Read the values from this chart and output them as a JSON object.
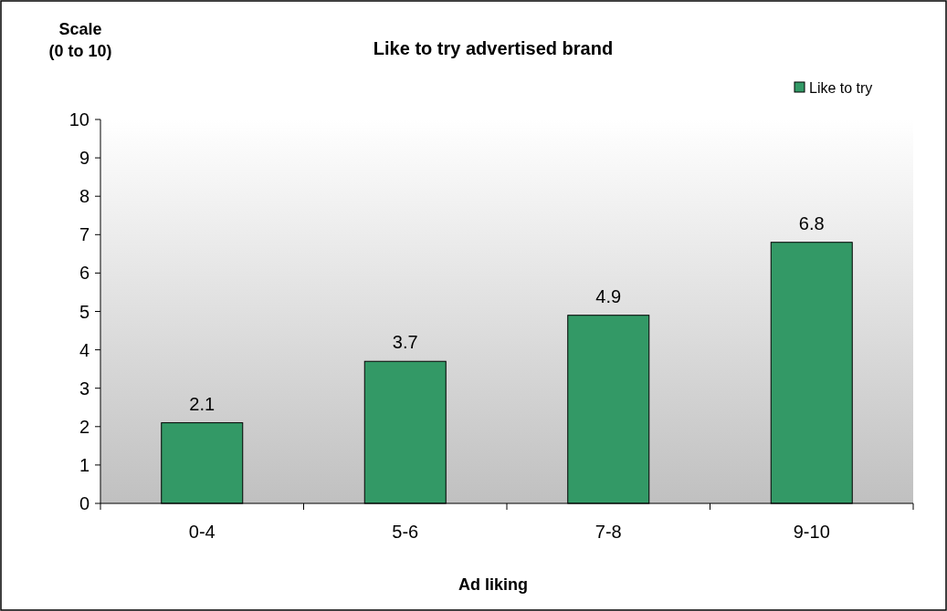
{
  "chart_data": {
    "type": "bar",
    "title": "Like to try advertised brand",
    "xlabel": "Ad liking",
    "ylabel": "Scale\n(0 to 10)",
    "categories": [
      "0-4",
      "5-6",
      "7-8",
      "9-10"
    ],
    "series": [
      {
        "name": "Like to try",
        "color": "#339966",
        "values": [
          2.1,
          3.7,
          4.9,
          6.8
        ]
      }
    ],
    "ylim": [
      0,
      10
    ],
    "yticks": [
      0,
      1,
      2,
      3,
      4,
      5,
      6,
      7,
      8,
      9,
      10
    ],
    "grid": false,
    "legend": "top right",
    "data_labels": true
  }
}
